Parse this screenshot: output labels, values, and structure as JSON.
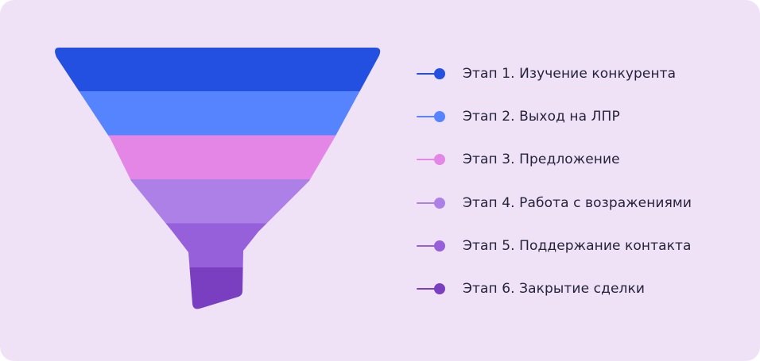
{
  "stages": [
    {
      "label": "Этап 1. Изучение конкурента",
      "color": "#2350e0"
    },
    {
      "label": "Этап 2. Выход на ЛПР",
      "color": "#5684ff"
    },
    {
      "label": "Этап 3. Предложение",
      "color": "#e486e5"
    },
    {
      "label": "Этап 4. Работа с возражениями",
      "color": "#ad80e7"
    },
    {
      "label": "Этап 5. Поддержание контакта",
      "color": "#9560d9"
    },
    {
      "label": "Этап 6. Закрытие сделки",
      "color": "#7a3fc0"
    }
  ]
}
